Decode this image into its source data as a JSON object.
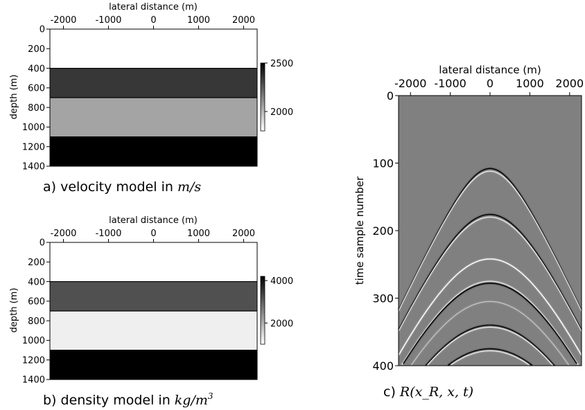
{
  "chart_data": [
    {
      "type": "heatmap",
      "panel": "a",
      "xlabel": "lateral distance (m)",
      "ylabel": "depth (m)",
      "xlim": [
        -2300,
        2300
      ],
      "ylim": [
        0,
        1400
      ],
      "x_ticks": [
        "-2000",
        "-1000",
        "0",
        "1000",
        "2000"
      ],
      "y_ticks": [
        "0",
        "200",
        "400",
        "600",
        "800",
        "1000",
        "1200",
        "1400"
      ],
      "layers": [
        {
          "top": 0,
          "bottom": 400,
          "value": 1800
        },
        {
          "top": 400,
          "bottom": 700,
          "value": 2350
        },
        {
          "top": 700,
          "bottom": 1100,
          "value": 2050
        },
        {
          "top": 1100,
          "bottom": 1400,
          "value": 2500
        }
      ],
      "colorbar": {
        "min": 1800,
        "max": 2500,
        "ticks": [
          "2500",
          "2000"
        ]
      },
      "caption": {
        "prefix": "a) velocity model in ",
        "math": "m/s"
      }
    },
    {
      "type": "heatmap",
      "panel": "b",
      "xlabel": "lateral distance (m)",
      "ylabel": "depth (m)",
      "xlim": [
        -2300,
        2300
      ],
      "ylim": [
        0,
        1400
      ],
      "x_ticks": [
        "-2000",
        "-1000",
        "0",
        "1000",
        "2000"
      ],
      "y_ticks": [
        "0",
        "200",
        "400",
        "600",
        "800",
        "1000",
        "1200",
        "1400"
      ],
      "layers": [
        {
          "top": 0,
          "bottom": 400,
          "value": 1000
        },
        {
          "top": 400,
          "bottom": 700,
          "value": 3200
        },
        {
          "top": 700,
          "bottom": 1100,
          "value": 1200
        },
        {
          "top": 1100,
          "bottom": 1400,
          "value": 4200
        }
      ],
      "colorbar": {
        "min": 1000,
        "max": 4200,
        "ticks": [
          "4000",
          "2000"
        ]
      },
      "caption": {
        "prefix": "b) density model in ",
        "math": "kg/m",
        "sup": "3"
      }
    },
    {
      "type": "heatmap",
      "panel": "c",
      "xlabel": "lateral distance (m)",
      "ylabel": "time sample number",
      "xlim": [
        -2300,
        2300
      ],
      "ylim": [
        0,
        400
      ],
      "x_ticks": [
        "-2000",
        "-1000",
        "0",
        "1000",
        "2000"
      ],
      "y_ticks": [
        "0",
        "100",
        "200",
        "300",
        "400"
      ],
      "events": [
        {
          "apex": 108,
          "color": "#000000"
        },
        {
          "apex": 112,
          "color": "#ffffff"
        },
        {
          "apex": 176,
          "color": "#000000"
        },
        {
          "apex": 180,
          "color": "#ffffff"
        },
        {
          "apex": 242,
          "color": "#ffffff"
        },
        {
          "apex": 275,
          "color": "#ffffff"
        },
        {
          "apex": 278,
          "color": "#000000"
        },
        {
          "apex": 305,
          "color": "#cfcfcf"
        },
        {
          "apex": 340,
          "color": "#000000"
        },
        {
          "apex": 343,
          "color": "#ffffff"
        },
        {
          "apex": 375,
          "color": "#000000"
        },
        {
          "apex": 378,
          "color": "#ffffff"
        }
      ],
      "caption": {
        "prefix": "c) ",
        "math": "R(x_R, x, t)"
      }
    }
  ]
}
